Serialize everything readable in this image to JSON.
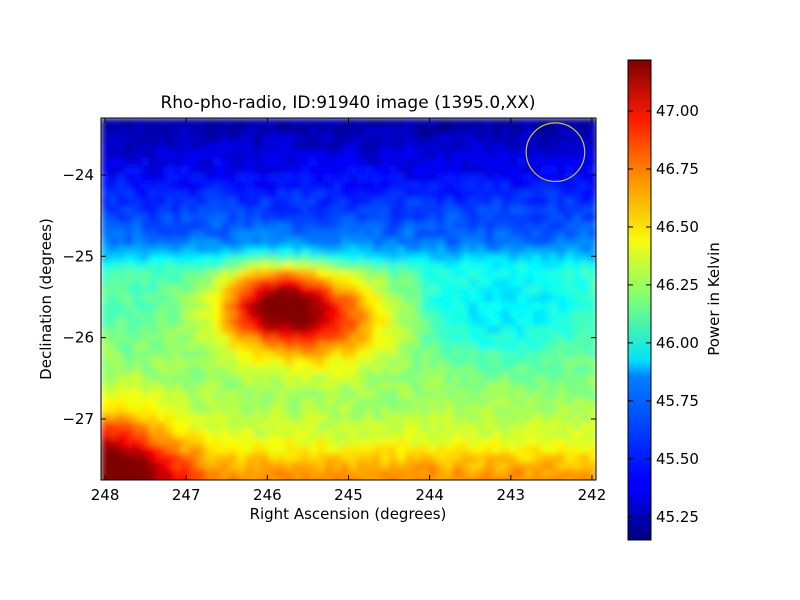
{
  "chart_data": {
    "type": "heatmap",
    "title": "Rho-pho-radio, ID:91940 image (1395.0,XX)",
    "xlabel": "Right Ascension (degrees)",
    "ylabel": "Declination (degrees)",
    "xlim": [
      248.05,
      241.95
    ],
    "ylim": [
      -27.75,
      -23.3
    ],
    "x_ticks": [
      248,
      247,
      246,
      245,
      244,
      243,
      242
    ],
    "x_tick_labels": [
      "248",
      "247",
      "246",
      "245",
      "244",
      "243",
      "242"
    ],
    "y_ticks": [
      -24,
      -25,
      -26,
      -27
    ],
    "y_tick_labels": [
      "−24",
      "−25",
      "−26",
      "−27"
    ],
    "colorbar": {
      "label": "Power in Kelvin",
      "colormap": "jet",
      "range": [
        45.15,
        47.22
      ],
      "ticks": [
        45.25,
        45.5,
        45.75,
        46.0,
        46.25,
        46.5,
        46.75,
        47.0
      ],
      "tick_labels": [
        "45.25",
        "45.50",
        "45.75",
        "46.00",
        "46.25",
        "46.50",
        "46.75",
        "47.00"
      ]
    },
    "grid": false,
    "features": [
      {
        "kind": "warm-blob",
        "ra": 245.5,
        "dec": -25.75,
        "peak": 46.9
      },
      {
        "kind": "hot-corner",
        "ra": 247.6,
        "dec": -27.55,
        "peak": 47.15
      }
    ],
    "annotations": [
      {
        "kind": "circle",
        "ra_center": 242.45,
        "dec_center": -23.72,
        "radius_dec": 0.36,
        "color": "#c8c83a"
      }
    ]
  }
}
